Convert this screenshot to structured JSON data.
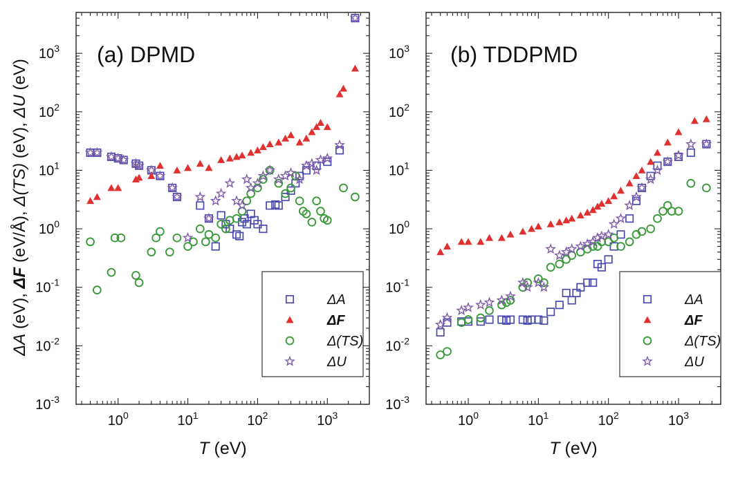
{
  "figure": {
    "ylabel_parts": [
      "ΔA",
      " (eV), ",
      "ΔF",
      " (eV/Å), ",
      "Δ(TS)",
      " (eV), ",
      "ΔU",
      " (eV)"
    ],
    "xlabel_var": "T",
    "xlabel_unit": " (eV)"
  },
  "chart_data": [
    {
      "type": "scatter",
      "title": "(a) DPMD",
      "xlabel": "T (eV)",
      "ylabel": "ΔA (eV), ΔF (eV/Å), Δ(TS) (eV), ΔU (eV)",
      "xscale": "log",
      "yscale": "log",
      "xlim": [
        0.25,
        4000
      ],
      "ylim": [
        0.001,
        5000
      ],
      "x_ticks": [
        {
          "v": 1,
          "m": "0"
        },
        {
          "v": 10,
          "m": "1"
        },
        {
          "v": 100,
          "m": "2"
        },
        {
          "v": 1000,
          "m": "3"
        }
      ],
      "y_ticks": [
        {
          "v": 0.001,
          "m": "-3"
        },
        {
          "v": 0.01,
          "m": "-2"
        },
        {
          "v": 0.1,
          "m": "-1"
        },
        {
          "v": 1,
          "m": "0"
        },
        {
          "v": 10,
          "m": "1"
        },
        {
          "v": 100,
          "m": "2"
        },
        {
          "v": 1000,
          "m": "3"
        }
      ],
      "tick_base": "10",
      "legend": "bottom-right",
      "series": [
        {
          "name": "ΔA",
          "marker": "square",
          "color": "#4a4ab0",
          "x": [
            0.4,
            0.5,
            0.8,
            1.0,
            1.2,
            1.8,
            2.0,
            3.0,
            4.0,
            6.0,
            7.0,
            15,
            20,
            25,
            30,
            35,
            40,
            50,
            55,
            60,
            65,
            70,
            80,
            90,
            100,
            120,
            150,
            180,
            200,
            250,
            300,
            350,
            400,
            500,
            700,
            1000,
            1500,
            2500
          ],
          "y": [
            20,
            20,
            17,
            16,
            15,
            13,
            12,
            10,
            8,
            5,
            3.5,
            2.5,
            1.5,
            0.5,
            1.7,
            1.2,
            1.0,
            0.8,
            0.75,
            1.3,
            1.5,
            1.2,
            1.8,
            1.4,
            1.2,
            1.0,
            2.5,
            2.6,
            2.5,
            3.5,
            4.5,
            6.0,
            8.0,
            10,
            12,
            14,
            22,
            4000
          ]
        },
        {
          "name": "ΔF",
          "marker": "triangle",
          "color": "#e03030",
          "x": [
            0.4,
            0.5,
            0.8,
            1.0,
            1.8,
            2.0,
            3.0,
            4.0,
            7.0,
            10,
            15,
            20,
            30,
            40,
            50,
            60,
            80,
            100,
            120,
            150,
            200,
            250,
            300,
            400,
            500,
            600,
            700,
            800,
            1000,
            1500,
            1700,
            2500
          ],
          "y": [
            3.0,
            3.5,
            5.0,
            5.0,
            7.0,
            7.5,
            8.0,
            12,
            10,
            11,
            13,
            11,
            15,
            16,
            17,
            18,
            20,
            22,
            25,
            28,
            30,
            35,
            40,
            30,
            35,
            45,
            55,
            65,
            55,
            200,
            250,
            550
          ]
        },
        {
          "name": "Δ(TS)",
          "marker": "circle",
          "color": "#3a9a3a",
          "x": [
            0.4,
            0.5,
            0.8,
            0.9,
            1.1,
            1.8,
            2.0,
            3.0,
            3.5,
            4.0,
            5.5,
            7.0,
            10,
            12,
            15,
            18,
            20,
            25,
            30,
            35,
            40,
            50,
            60,
            70,
            80,
            100,
            120,
            150,
            200,
            250,
            300,
            350,
            400,
            450,
            500,
            600,
            700,
            800,
            900,
            1000,
            1700,
            2500
          ],
          "y": [
            0.6,
            0.09,
            0.18,
            0.7,
            0.7,
            0.16,
            0.12,
            0.4,
            0.7,
            0.9,
            0.4,
            0.7,
            0.5,
            0.6,
            1.0,
            0.6,
            0.8,
            0.7,
            1.2,
            1.0,
            1.4,
            1.5,
            2.0,
            3.0,
            4.0,
            5.0,
            7.0,
            10,
            6.0,
            4.0,
            5.0,
            8.0,
            3.0,
            2.0,
            1.8,
            1.3,
            3.0,
            2.0,
            1.5,
            1.4,
            5.0,
            3.5
          ]
        },
        {
          "name": "ΔU",
          "marker": "star",
          "color": "#7d5aa8",
          "x": [
            0.4,
            0.5,
            0.8,
            1.0,
            1.2,
            1.8,
            2.0,
            3.0,
            4.0,
            6.0,
            7.0,
            10,
            15,
            20,
            25,
            30,
            40,
            50,
            60,
            70,
            80,
            100,
            120,
            150,
            200,
            250,
            300,
            400,
            500,
            600,
            700,
            800,
            1000,
            1500,
            2500
          ],
          "y": [
            20,
            20,
            17,
            16,
            15,
            13,
            12,
            10,
            8,
            5,
            3.5,
            0.7,
            3.5,
            1.5,
            3.0,
            4.0,
            6.0,
            3.0,
            2.5,
            7.0,
            5.0,
            6.0,
            8.0,
            10,
            7.0,
            8.0,
            9.0,
            7.0,
            12,
            13,
            10,
            15,
            16,
            27,
            4000
          ]
        }
      ]
    },
    {
      "type": "scatter",
      "title": "(b) TDDPMD",
      "xlabel": "T (eV)",
      "xscale": "log",
      "yscale": "log",
      "xlim": [
        0.25,
        4000
      ],
      "ylim": [
        0.001,
        5000
      ],
      "x_ticks": [
        {
          "v": 1,
          "m": "0"
        },
        {
          "v": 10,
          "m": "1"
        },
        {
          "v": 100,
          "m": "2"
        },
        {
          "v": 1000,
          "m": "3"
        }
      ],
      "y_ticks": [
        {
          "v": 0.001,
          "m": "-3"
        },
        {
          "v": 0.01,
          "m": "-2"
        },
        {
          "v": 0.1,
          "m": "-1"
        },
        {
          "v": 1,
          "m": "0"
        },
        {
          "v": 10,
          "m": "1"
        },
        {
          "v": 100,
          "m": "2"
        },
        {
          "v": 1000,
          "m": "3"
        }
      ],
      "tick_base": "10",
      "legend": "bottom-right",
      "series": [
        {
          "name": "ΔA",
          "marker": "square",
          "color": "#4a4ab0",
          "x": [
            0.4,
            0.5,
            0.8,
            1.0,
            1.5,
            2.0,
            3.0,
            3.5,
            4.0,
            6.0,
            7.0,
            8.0,
            10,
            12,
            15,
            20,
            25,
            30,
            35,
            40,
            50,
            60,
            70,
            80,
            100,
            120,
            150,
            200,
            250,
            300,
            400,
            500,
            700,
            1000,
            1500,
            2500
          ],
          "y": [
            0.017,
            0.025,
            0.026,
            0.026,
            0.026,
            0.028,
            0.028,
            0.027,
            0.028,
            0.028,
            0.027,
            0.028,
            0.028,
            0.027,
            0.038,
            0.05,
            0.08,
            0.06,
            0.08,
            0.1,
            0.12,
            0.12,
            0.25,
            0.22,
            0.3,
            0.5,
            0.8,
            1.5,
            3.0,
            5.0,
            8.0,
            12,
            14,
            17,
            20,
            28
          ]
        },
        {
          "name": "ΔF",
          "marker": "triangle",
          "color": "#e03030",
          "x": [
            0.4,
            0.5,
            0.8,
            1.0,
            1.5,
            2.0,
            3.0,
            4.0,
            6.0,
            8.0,
            10,
            15,
            20,
            25,
            30,
            40,
            50,
            60,
            70,
            80,
            100,
            120,
            150,
            200,
            250,
            300,
            400,
            500,
            700,
            1000,
            1700,
            2500
          ],
          "y": [
            0.4,
            0.5,
            0.6,
            0.6,
            0.6,
            0.7,
            0.7,
            0.8,
            0.9,
            1.0,
            1.1,
            1.2,
            1.3,
            1.4,
            1.5,
            1.7,
            1.9,
            2.1,
            2.4,
            2.7,
            3.0,
            3.6,
            4.5,
            6.0,
            8.0,
            10,
            14,
            20,
            30,
            45,
            70,
            75
          ]
        },
        {
          "name": "Δ(TS)",
          "marker": "circle",
          "color": "#3a9a3a",
          "x": [
            0.4,
            0.5,
            0.8,
            1.0,
            1.5,
            2.0,
            3.0,
            3.5,
            4.0,
            6.0,
            7.0,
            10,
            12,
            15,
            20,
            25,
            30,
            40,
            50,
            60,
            70,
            80,
            100,
            120,
            150,
            200,
            250,
            300,
            400,
            500,
            600,
            700,
            800,
            1000,
            1500,
            2500
          ],
          "y": [
            0.007,
            0.008,
            0.025,
            0.028,
            0.03,
            0.04,
            0.05,
            0.055,
            0.06,
            0.1,
            0.12,
            0.14,
            0.12,
            0.22,
            0.25,
            0.3,
            0.35,
            0.4,
            0.45,
            0.5,
            0.5,
            0.6,
            0.6,
            0.7,
            0.5,
            0.6,
            0.8,
            0.9,
            1.0,
            1.5,
            2.0,
            2.5,
            2.0,
            2.0,
            6.0,
            5.0
          ]
        },
        {
          "name": "ΔU",
          "marker": "star",
          "color": "#7d5aa8",
          "x": [
            0.4,
            0.5,
            0.8,
            1.0,
            1.5,
            2.0,
            3.0,
            4.0,
            6.0,
            7.0,
            10,
            12,
            15,
            20,
            25,
            30,
            40,
            50,
            60,
            70,
            80,
            100,
            120,
            150,
            200,
            250,
            300,
            400,
            500,
            700,
            1000,
            1500,
            2500
          ],
          "y": [
            0.023,
            0.03,
            0.04,
            0.045,
            0.05,
            0.055,
            0.06,
            0.07,
            0.12,
            0.1,
            0.12,
            0.1,
            0.45,
            0.35,
            0.4,
            0.45,
            0.5,
            0.55,
            0.6,
            0.7,
            0.75,
            0.8,
            1.2,
            1.5,
            2.5,
            3.5,
            5.0,
            7.0,
            10,
            14,
            18,
            28,
            28
          ]
        }
      ]
    }
  ]
}
